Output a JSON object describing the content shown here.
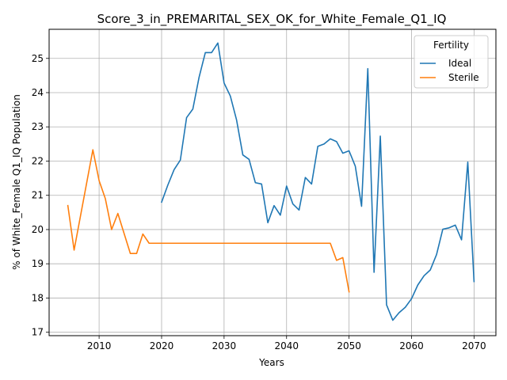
{
  "chart_data": {
    "type": "line",
    "title": "Score_3_in_PREMARITAL_SEX_OK_for_White_Female_Q1_IQ",
    "xlabel": "Years",
    "ylabel": "% of White_Female Q1_IQ Population",
    "xlim": [
      2002,
      2073.5
    ],
    "ylim": [
      16.9,
      25.85
    ],
    "xticks": [
      2010,
      2020,
      2030,
      2040,
      2050,
      2060,
      2070
    ],
    "yticks": [
      17,
      18,
      19,
      20,
      21,
      22,
      23,
      24,
      25
    ],
    "grid": true,
    "legend": {
      "title": "Fertility",
      "position": "top-right"
    },
    "series": [
      {
        "name": "Ideal",
        "color": "#1f77b4",
        "points": [
          [
            2020,
            20.8
          ],
          [
            2021,
            21.3
          ],
          [
            2022,
            21.75
          ],
          [
            2023,
            22.03
          ],
          [
            2024,
            23.27
          ],
          [
            2025,
            23.52
          ],
          [
            2026,
            24.45
          ],
          [
            2027,
            25.17
          ],
          [
            2028,
            25.17
          ],
          [
            2029,
            25.45
          ],
          [
            2030,
            24.28
          ],
          [
            2031,
            23.9
          ],
          [
            2032,
            23.2
          ],
          [
            2033,
            22.18
          ],
          [
            2034,
            22.05
          ],
          [
            2035,
            21.37
          ],
          [
            2036,
            21.33
          ],
          [
            2037,
            20.2
          ],
          [
            2038,
            20.7
          ],
          [
            2039,
            20.42
          ],
          [
            2040,
            21.27
          ],
          [
            2041,
            20.75
          ],
          [
            2042,
            20.57
          ],
          [
            2043,
            21.52
          ],
          [
            2044,
            21.33
          ],
          [
            2045,
            22.43
          ],
          [
            2046,
            22.5
          ],
          [
            2047,
            22.65
          ],
          [
            2048,
            22.57
          ],
          [
            2049,
            22.23
          ],
          [
            2050,
            22.3
          ],
          [
            2051,
            21.85
          ],
          [
            2052,
            20.68
          ],
          [
            2053,
            24.7
          ],
          [
            2054,
            18.75
          ],
          [
            2055,
            22.73
          ],
          [
            2056,
            17.8
          ],
          [
            2057,
            17.35
          ],
          [
            2058,
            17.57
          ],
          [
            2059,
            17.73
          ],
          [
            2060,
            17.98
          ],
          [
            2061,
            18.38
          ],
          [
            2062,
            18.65
          ],
          [
            2063,
            18.82
          ],
          [
            2064,
            19.27
          ],
          [
            2065,
            20.01
          ],
          [
            2066,
            20.05
          ],
          [
            2067,
            20.13
          ],
          [
            2068,
            19.7
          ],
          [
            2069,
            21.97
          ],
          [
            2070,
            18.48
          ]
        ]
      },
      {
        "name": "Sterile",
        "color": "#ff7f0e",
        "points": [
          [
            2005,
            20.7
          ],
          [
            2006,
            19.4
          ],
          [
            2009,
            22.33
          ],
          [
            2010,
            21.43
          ],
          [
            2011,
            20.9
          ],
          [
            2012,
            20.0
          ],
          [
            2013,
            20.47
          ],
          [
            2015,
            19.3
          ],
          [
            2016,
            19.3
          ],
          [
            2017,
            19.87
          ],
          [
            2018,
            19.6
          ],
          [
            2047,
            19.6
          ],
          [
            2048,
            19.1
          ],
          [
            2049,
            19.18
          ],
          [
            2050,
            18.18
          ]
        ]
      }
    ]
  }
}
